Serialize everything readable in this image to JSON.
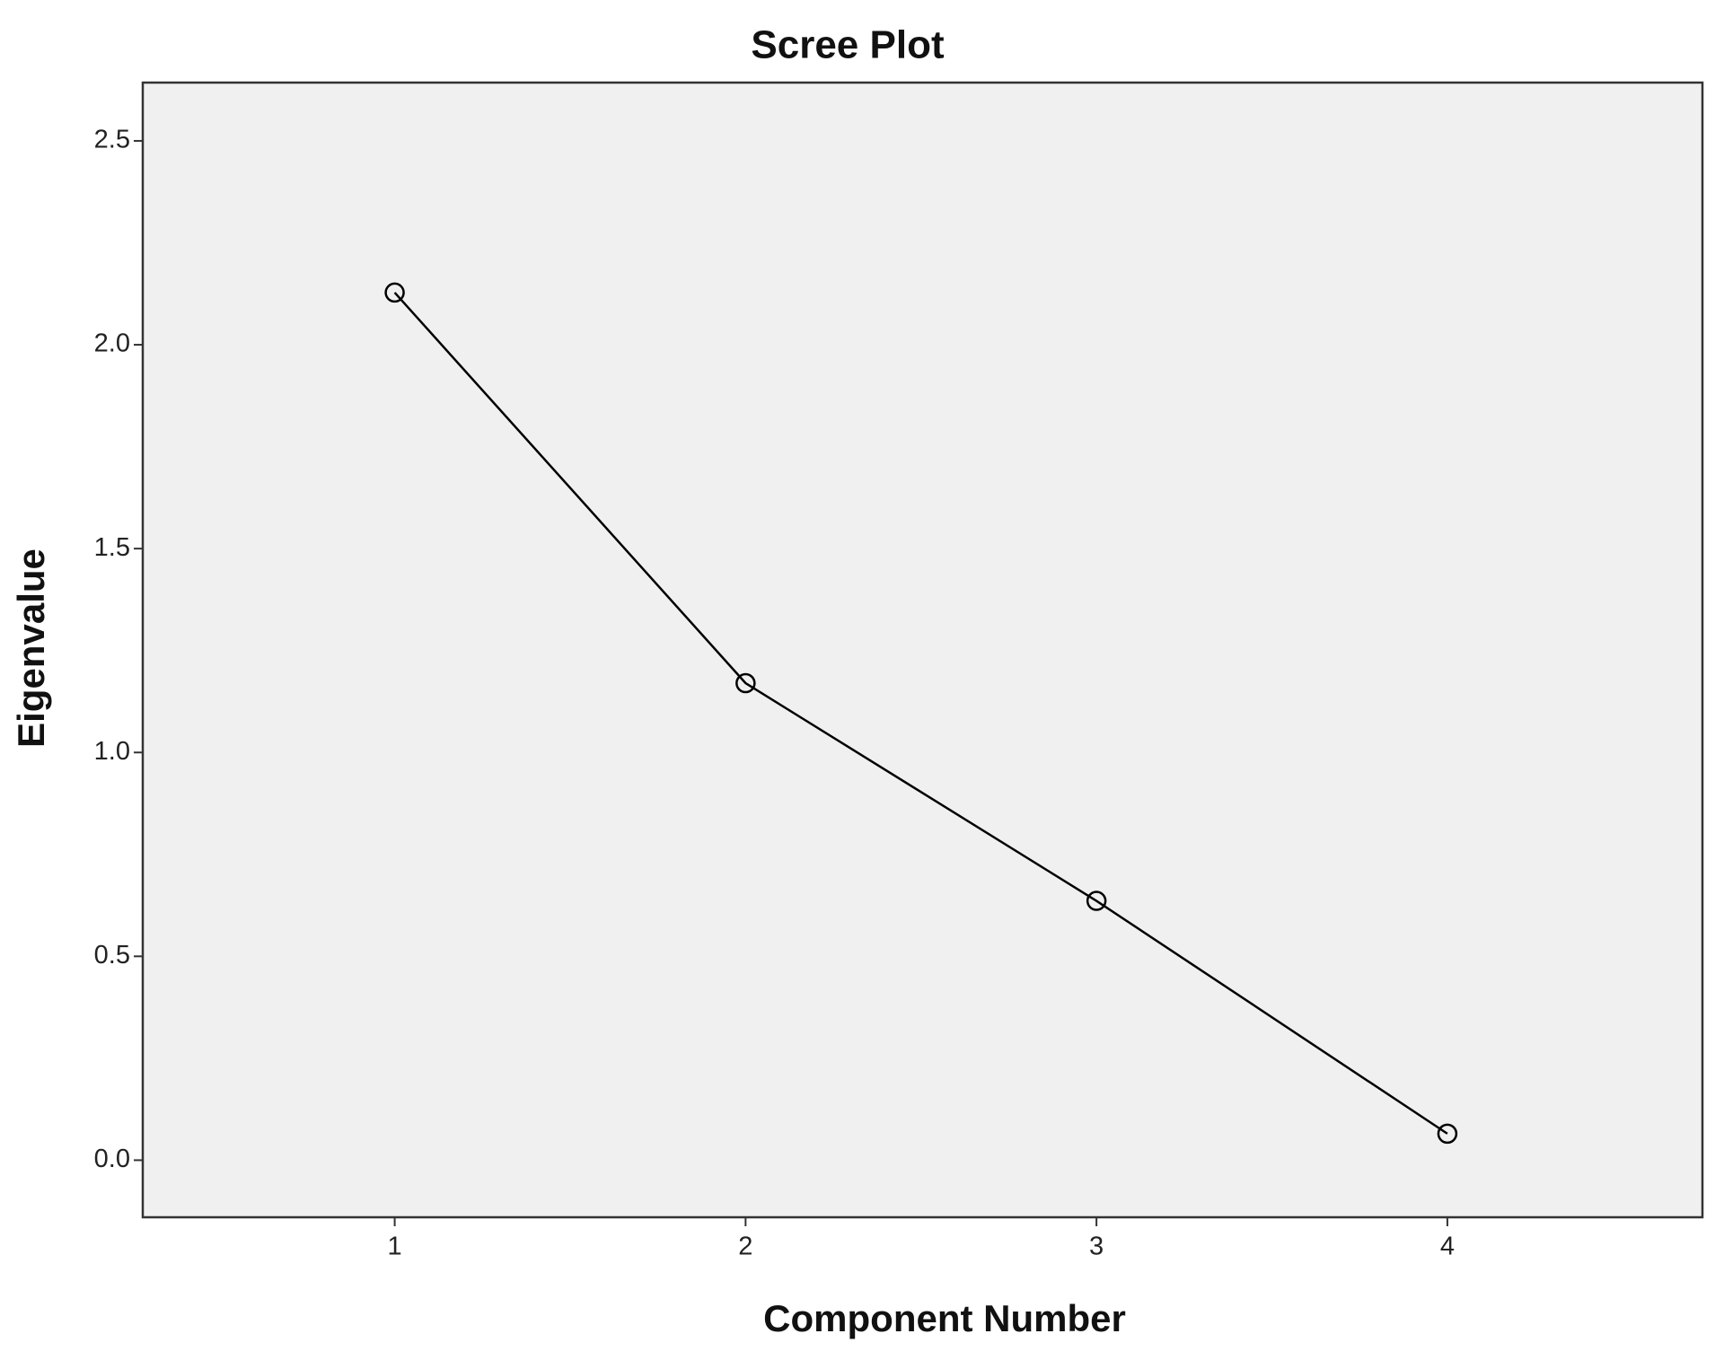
{
  "chart_data": {
    "type": "line",
    "title": "Scree Plot",
    "x_label": "Component Number",
    "y_label": "Eigenvalue",
    "x": [
      1,
      2,
      3,
      4
    ],
    "series": [
      {
        "name": "Eigenvalue",
        "color": "#000000",
        "values": [
          2.128,
          1.17,
          0.636,
          0.065
        ]
      }
    ],
    "xlim": [
      0.282,
      4.727
    ],
    "xticks": [
      1,
      2,
      3,
      4
    ],
    "ylim": [
      -0.14,
      2.643
    ],
    "yticks": [
      {
        "value": 0,
        "label": "0.0"
      },
      0.5,
      {
        "value": 1,
        "label": "1.0"
      },
      1.5,
      {
        "value": 2,
        "label": "2.0"
      },
      2.5
    ],
    "grid": false
  }
}
